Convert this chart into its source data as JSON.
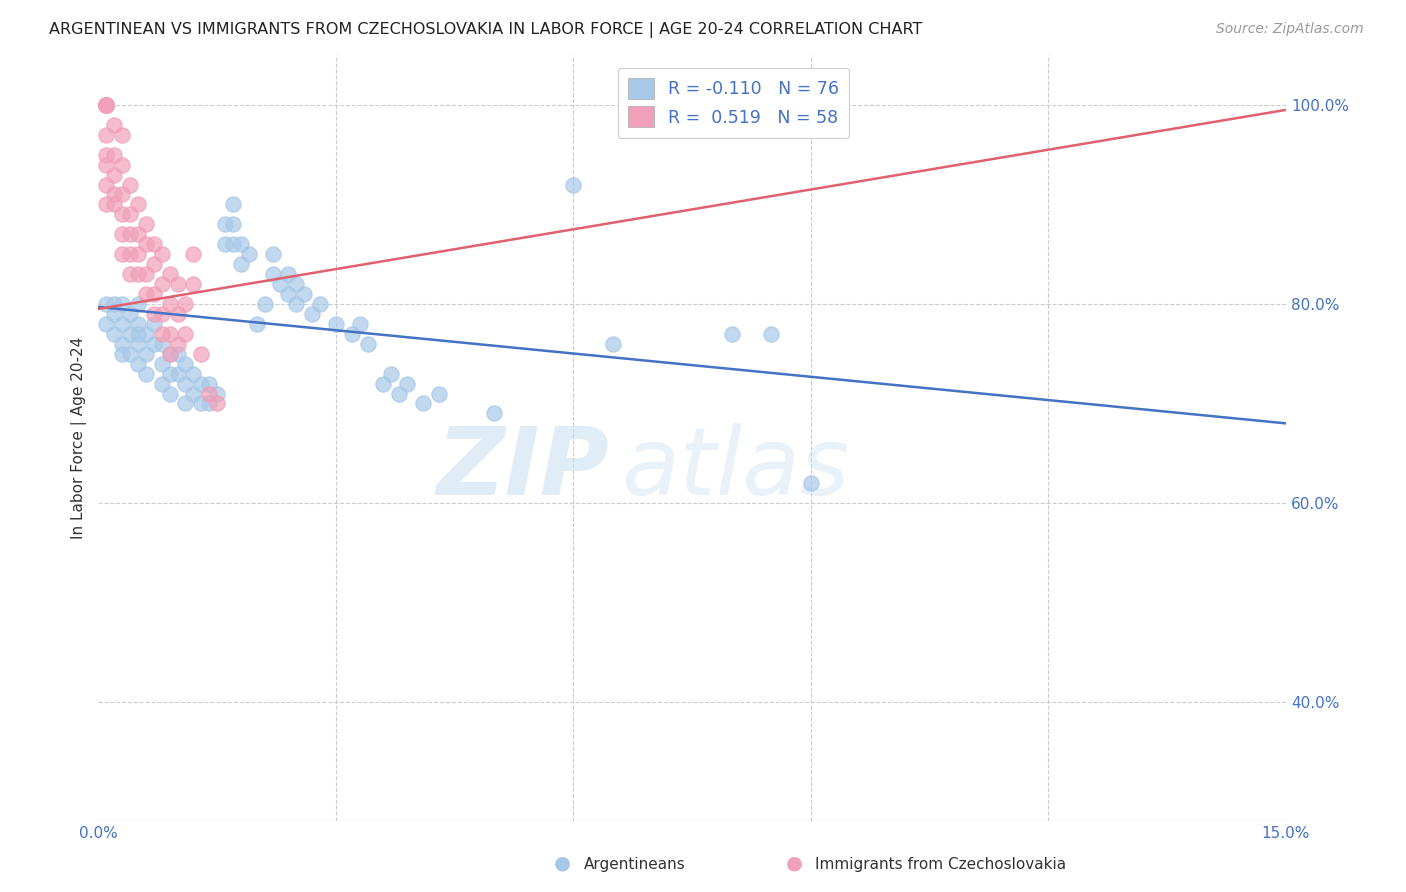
{
  "title": "ARGENTINEAN VS IMMIGRANTS FROM CZECHOSLOVAKIA IN LABOR FORCE | AGE 20-24 CORRELATION CHART",
  "source_text": "Source: ZipAtlas.com",
  "ylabel": "In Labor Force | Age 20-24",
  "xlim": [
    0.0,
    0.15
  ],
  "ylim": [
    0.28,
    1.05
  ],
  "blue_color": "#a8c8e8",
  "pink_color": "#f0a0b8",
  "blue_line_color": "#4472c4",
  "pink_line_color": "#e06070",
  "R_blue": -0.11,
  "N_blue": 76,
  "R_pink": 0.519,
  "N_pink": 58,
  "legend_label_blue": "Argentineans",
  "legend_label_pink": "Immigrants from Czechoslovakia",
  "watermark_zip": "ZIP",
  "watermark_atlas": "atlas",
  "blue_scatter": [
    [
      0.001,
      0.8
    ],
    [
      0.001,
      0.78
    ],
    [
      0.002,
      0.8
    ],
    [
      0.002,
      0.77
    ],
    [
      0.002,
      0.79
    ],
    [
      0.003,
      0.8
    ],
    [
      0.003,
      0.78
    ],
    [
      0.003,
      0.76
    ],
    [
      0.003,
      0.75
    ],
    [
      0.004,
      0.79
    ],
    [
      0.004,
      0.77
    ],
    [
      0.004,
      0.75
    ],
    [
      0.005,
      0.8
    ],
    [
      0.005,
      0.78
    ],
    [
      0.005,
      0.77
    ],
    [
      0.005,
      0.76
    ],
    [
      0.005,
      0.74
    ],
    [
      0.006,
      0.77
    ],
    [
      0.006,
      0.75
    ],
    [
      0.006,
      0.73
    ],
    [
      0.007,
      0.78
    ],
    [
      0.007,
      0.76
    ],
    [
      0.008,
      0.76
    ],
    [
      0.008,
      0.74
    ],
    [
      0.008,
      0.72
    ],
    [
      0.009,
      0.75
    ],
    [
      0.009,
      0.73
    ],
    [
      0.009,
      0.71
    ],
    [
      0.01,
      0.75
    ],
    [
      0.01,
      0.73
    ],
    [
      0.011,
      0.74
    ],
    [
      0.011,
      0.72
    ],
    [
      0.011,
      0.7
    ],
    [
      0.012,
      0.73
    ],
    [
      0.012,
      0.71
    ],
    [
      0.013,
      0.72
    ],
    [
      0.013,
      0.7
    ],
    [
      0.014,
      0.72
    ],
    [
      0.014,
      0.7
    ],
    [
      0.015,
      0.71
    ],
    [
      0.016,
      0.88
    ],
    [
      0.016,
      0.86
    ],
    [
      0.017,
      0.9
    ],
    [
      0.017,
      0.88
    ],
    [
      0.017,
      0.86
    ],
    [
      0.018,
      0.86
    ],
    [
      0.018,
      0.84
    ],
    [
      0.019,
      0.85
    ],
    [
      0.02,
      0.78
    ],
    [
      0.021,
      0.8
    ],
    [
      0.022,
      0.85
    ],
    [
      0.022,
      0.83
    ],
    [
      0.023,
      0.82
    ],
    [
      0.024,
      0.83
    ],
    [
      0.024,
      0.81
    ],
    [
      0.025,
      0.82
    ],
    [
      0.025,
      0.8
    ],
    [
      0.026,
      0.81
    ],
    [
      0.027,
      0.79
    ],
    [
      0.028,
      0.8
    ],
    [
      0.03,
      0.78
    ],
    [
      0.032,
      0.77
    ],
    [
      0.033,
      0.78
    ],
    [
      0.034,
      0.76
    ],
    [
      0.036,
      0.72
    ],
    [
      0.037,
      0.73
    ],
    [
      0.038,
      0.71
    ],
    [
      0.039,
      0.72
    ],
    [
      0.041,
      0.7
    ],
    [
      0.043,
      0.71
    ],
    [
      0.05,
      0.69
    ],
    [
      0.06,
      0.92
    ],
    [
      0.065,
      0.76
    ],
    [
      0.08,
      0.77
    ],
    [
      0.085,
      0.77
    ],
    [
      0.09,
      0.62
    ]
  ],
  "pink_scatter": [
    [
      0.001,
      1.0
    ],
    [
      0.001,
      1.0
    ],
    [
      0.001,
      1.0
    ],
    [
      0.001,
      1.0
    ],
    [
      0.001,
      1.0
    ],
    [
      0.001,
      1.0
    ],
    [
      0.001,
      1.0
    ],
    [
      0.001,
      0.97
    ],
    [
      0.001,
      0.95
    ],
    [
      0.001,
      0.94
    ],
    [
      0.001,
      0.92
    ],
    [
      0.001,
      0.9
    ],
    [
      0.002,
      0.98
    ],
    [
      0.002,
      0.95
    ],
    [
      0.002,
      0.93
    ],
    [
      0.002,
      0.91
    ],
    [
      0.002,
      0.9
    ],
    [
      0.003,
      0.97
    ],
    [
      0.003,
      0.94
    ],
    [
      0.003,
      0.91
    ],
    [
      0.003,
      0.89
    ],
    [
      0.003,
      0.87
    ],
    [
      0.003,
      0.85
    ],
    [
      0.004,
      0.92
    ],
    [
      0.004,
      0.89
    ],
    [
      0.004,
      0.87
    ],
    [
      0.004,
      0.85
    ],
    [
      0.004,
      0.83
    ],
    [
      0.005,
      0.9
    ],
    [
      0.005,
      0.87
    ],
    [
      0.005,
      0.85
    ],
    [
      0.005,
      0.83
    ],
    [
      0.006,
      0.88
    ],
    [
      0.006,
      0.86
    ],
    [
      0.006,
      0.83
    ],
    [
      0.006,
      0.81
    ],
    [
      0.007,
      0.86
    ],
    [
      0.007,
      0.84
    ],
    [
      0.007,
      0.81
    ],
    [
      0.007,
      0.79
    ],
    [
      0.008,
      0.85
    ],
    [
      0.008,
      0.82
    ],
    [
      0.008,
      0.79
    ],
    [
      0.008,
      0.77
    ],
    [
      0.009,
      0.83
    ],
    [
      0.009,
      0.8
    ],
    [
      0.009,
      0.77
    ],
    [
      0.009,
      0.75
    ],
    [
      0.01,
      0.82
    ],
    [
      0.01,
      0.79
    ],
    [
      0.01,
      0.76
    ],
    [
      0.011,
      0.8
    ],
    [
      0.011,
      0.77
    ],
    [
      0.012,
      0.85
    ],
    [
      0.012,
      0.82
    ],
    [
      0.013,
      0.75
    ],
    [
      0.014,
      0.71
    ],
    [
      0.015,
      0.7
    ]
  ],
  "blue_line_x": [
    0.0,
    0.15
  ],
  "blue_line_y": [
    0.797,
    0.68
  ],
  "pink_line_x": [
    0.0,
    0.15
  ],
  "pink_line_y": [
    0.795,
    0.995
  ]
}
